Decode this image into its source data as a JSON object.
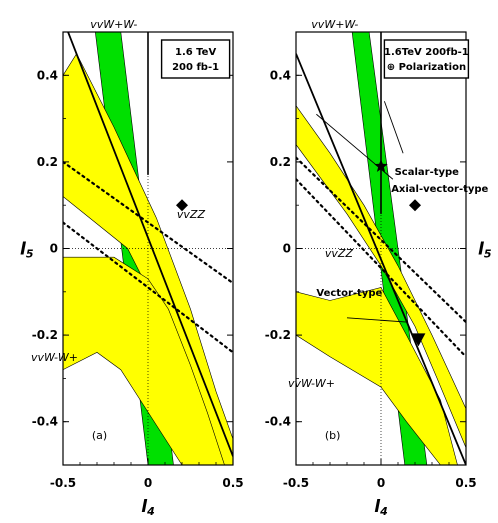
{
  "chart_data": [
    {
      "type": "area",
      "panel_tag": "(a)",
      "xlabel": "l4",
      "ylabel": "l5",
      "xlim": [
        -0.5,
        0.5
      ],
      "ylim": [
        -0.5,
        0.5
      ],
      "x_ticks": [
        "-0.5",
        "0",
        "0.5"
      ],
      "y_ticks": [
        "0.4",
        "0.2",
        "0",
        "-0.2",
        "-0.4"
      ],
      "luminosity_box": [
        "1.6 TeV",
        "200 fb-1"
      ],
      "process_labels": [
        "vvW+W-",
        "vvZZ",
        "vvW-W+"
      ],
      "regions": [
        {
          "name": "green band (vvW+W-)",
          "color": "#00e000",
          "polygon": [
            [
              -0.31,
              0.5
            ],
            [
              -0.16,
              0.5
            ],
            [
              0.15,
              -0.5
            ],
            [
              0.0,
              -0.5
            ]
          ]
        },
        {
          "name": "yellow upper band",
          "color": "#ffff00",
          "polygon": [
            [
              -0.5,
              0.4
            ],
            [
              -0.5,
              0.12
            ],
            [
              -0.12,
              0.0
            ],
            [
              0.1,
              -0.17
            ],
            [
              0.22,
              -0.36
            ],
            [
              0.3,
              -0.5
            ],
            [
              0.5,
              -0.5
            ],
            [
              0.5,
              -0.44
            ],
            [
              0.4,
              -0.33
            ],
            [
              0.25,
              -0.14
            ],
            [
              0.05,
              0.07
            ],
            [
              -0.2,
              0.28
            ],
            [
              -0.42,
              0.45
            ]
          ]
        },
        {
          "name": "yellow lower band",
          "color": "#ffff00",
          "polygon": [
            [
              -0.5,
              -0.02
            ],
            [
              -0.2,
              -0.02
            ],
            [
              0.0,
              -0.07
            ],
            [
              0.12,
              -0.14
            ],
            [
              0.25,
              -0.27
            ],
            [
              0.35,
              -0.38
            ],
            [
              0.45,
              -0.5
            ],
            [
              0.5,
              -0.5
            ],
            [
              0.5,
              -0.5
            ],
            [
              0.2,
              -0.5
            ],
            [
              0.02,
              -0.39
            ],
            [
              -0.16,
              -0.28
            ],
            [
              -0.3,
              -0.24
            ],
            [
              -0.5,
              -0.28
            ]
          ]
        }
      ],
      "series": [
        {
          "name": "vvW+W- solid line",
          "style": "solid",
          "x": [
            -0.5,
            0.5
          ],
          "y": [
            0.53,
            -0.48
          ]
        },
        {
          "name": "vvZZ dotted upper",
          "style": "dotted",
          "x": [
            -0.5,
            0.5
          ],
          "y": [
            0.2,
            -0.08
          ]
        },
        {
          "name": "vvZZ dotted lower",
          "style": "dotted",
          "x": [
            -0.5,
            0.5
          ],
          "y": [
            0.06,
            -0.24
          ]
        }
      ],
      "markers": [
        {
          "symbol": "diamond",
          "x": 0.2,
          "y": 0.1
        }
      ]
    },
    {
      "type": "area",
      "panel_tag": "(b)",
      "xlabel": "l4",
      "ylabel": "l5",
      "xlim": [
        -0.5,
        0.5
      ],
      "ylim": [
        -0.5,
        0.5
      ],
      "x_ticks": [
        "-0.5",
        "0",
        "0.5"
      ],
      "y_ticks": [
        "0.4",
        "0.2",
        "0",
        "-0.2",
        "-0.4"
      ],
      "luminosity_box": [
        "1.6TeV 200fb-1",
        "Polarization"
      ],
      "process_labels": [
        "vvW+W-",
        "vvZZ",
        "vvW-W+"
      ],
      "annotations": [
        "Scalar-type",
        "Axial-vector-type",
        "Vector-type"
      ],
      "regions": [
        {
          "name": "green band (vvW+W-)",
          "color": "#00e000",
          "polygon": [
            [
              -0.17,
              0.5
            ],
            [
              -0.07,
              0.5
            ],
            [
              0.27,
              -0.5
            ],
            [
              0.14,
              -0.5
            ]
          ]
        },
        {
          "name": "yellow upper band",
          "color": "#ffff00",
          "polygon": [
            [
              -0.5,
              0.33
            ],
            [
              -0.5,
              0.24
            ],
            [
              -0.2,
              0.08
            ],
            [
              0.0,
              -0.04
            ],
            [
              0.2,
              -0.18
            ],
            [
              0.33,
              -0.3
            ],
            [
              0.5,
              -0.46
            ],
            [
              0.5,
              -0.37
            ],
            [
              0.3,
              -0.2
            ],
            [
              0.1,
              -0.04
            ],
            [
              -0.1,
              0.1
            ],
            [
              -0.3,
              0.22
            ],
            [
              -0.5,
              0.33
            ]
          ]
        },
        {
          "name": "yellow lower band",
          "color": "#ffff00",
          "polygon": [
            [
              -0.5,
              -0.1
            ],
            [
              -0.3,
              -0.12
            ],
            [
              0.0,
              -0.09
            ],
            [
              0.15,
              -0.2
            ],
            [
              0.35,
              -0.35
            ],
            [
              0.45,
              -0.5
            ],
            [
              0.35,
              -0.5
            ],
            [
              0.27,
              -0.46
            ],
            [
              0.15,
              -0.4
            ],
            [
              0.0,
              -0.32
            ],
            [
              -0.3,
              -0.25
            ],
            [
              -0.5,
              -0.2
            ]
          ]
        }
      ],
      "series": [
        {
          "name": "vvW+W- solid line",
          "style": "solid",
          "x": [
            -0.5,
            0.5
          ],
          "y": [
            0.45,
            -0.5
          ]
        },
        {
          "name": "vvZZ dotted upper",
          "style": "dotted",
          "x": [
            -0.5,
            0.5
          ],
          "y": [
            0.21,
            -0.17
          ]
        },
        {
          "name": "vvZZ dotted lower",
          "style": "dotted",
          "x": [
            -0.5,
            0.5
          ],
          "y": [
            0.16,
            -0.25
          ]
        }
      ],
      "markers": [
        {
          "symbol": "diamond",
          "x": 0.2,
          "y": 0.1
        },
        {
          "symbol": "star",
          "x": 0.0,
          "y": 0.19
        },
        {
          "symbol": "triangle-down",
          "x": 0.22,
          "y": -0.21
        }
      ]
    }
  ]
}
